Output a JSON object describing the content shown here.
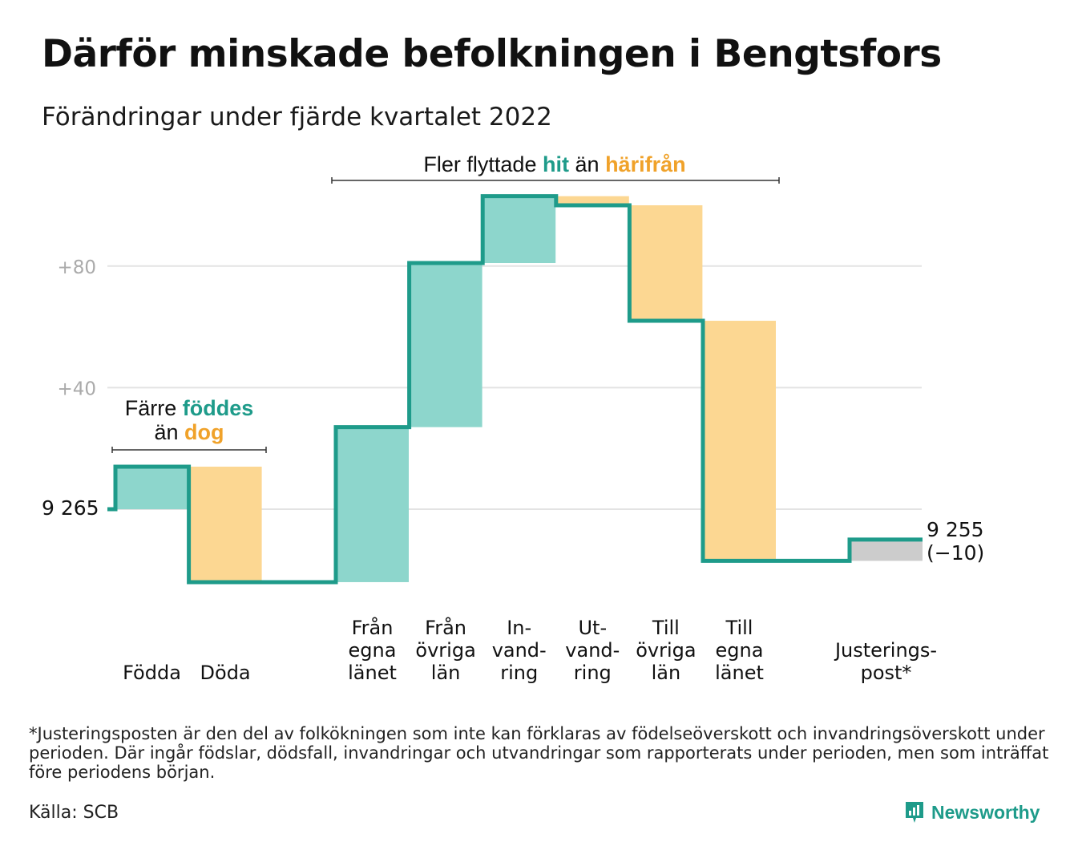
{
  "title": "Därför minskade befolkningen i Bengtsfors",
  "subtitle": "Förändringar under fjärde kvartalet 2022",
  "annotations": {
    "births_deaths": {
      "prefix": "Färre",
      "in": "föddes",
      "line2_prefix": "än",
      "out": "dog"
    },
    "migration": {
      "prefix": "Fler flyttade",
      "in": "hit",
      "middle": "än",
      "out": "härifrån"
    }
  },
  "start_label": "9 265",
  "end_label": {
    "value": "9 255",
    "change": "(−10)"
  },
  "footnote": "*Justeringsposten är den del av folkökningen som inte kan förklaras av födelseöverskott och invandringsöverskott under perioden. Där ingår födslar, dödsfall, invandringar och utvandringar som rapporterats under perioden, men som inträffat före periodens början.",
  "source": "Källa: SCB",
  "brand": "Newsworthy",
  "colors": {
    "increase": "#8dd6cc",
    "decrease": "#fcd792",
    "adjustment": "#cccccc",
    "line": "#1e9b8a",
    "highlight_in": "#1e9b8a",
    "highlight_out": "#f0a22a",
    "grid": "#e3e3e3",
    "tick": "#aaaaaa"
  },
  "chart_data": {
    "type": "waterfall",
    "start_value": 9265,
    "end_value": 9255,
    "y_ticks": [
      {
        "value": 40,
        "label": "+40"
      },
      {
        "value": 80,
        "label": "+80"
      }
    ],
    "ylim": [
      -28,
      102
    ],
    "steps": [
      {
        "key": "fodda",
        "label": [
          "Födda"
        ],
        "change": 14,
        "kind": "increase",
        "group": 0
      },
      {
        "key": "doda",
        "label": [
          "Döda"
        ],
        "change": -38,
        "kind": "decrease",
        "group": 0
      },
      {
        "key": "fran_egna",
        "label": [
          "Från",
          "egna",
          "länet"
        ],
        "change": 51,
        "kind": "increase",
        "group": 1
      },
      {
        "key": "fran_ovriga",
        "label": [
          "Från",
          "övriga",
          "län"
        ],
        "change": 54,
        "kind": "increase",
        "group": 1
      },
      {
        "key": "invandring",
        "label": [
          "In-",
          "vand-",
          "ring"
        ],
        "change": 22,
        "kind": "increase",
        "group": 1
      },
      {
        "key": "utvandring",
        "label": [
          "Ut-",
          "vand-",
          "ring"
        ],
        "change": -3,
        "kind": "decrease",
        "group": 1
      },
      {
        "key": "till_ovriga",
        "label": [
          "Till",
          "övriga",
          "län"
        ],
        "change": -38,
        "kind": "decrease",
        "group": 1
      },
      {
        "key": "till_egna",
        "label": [
          "Till",
          "egna",
          "länet"
        ],
        "change": -79,
        "kind": "decrease",
        "group": 1
      },
      {
        "key": "justering",
        "label": [
          "Justerings-",
          "post*"
        ],
        "change": 7,
        "kind": "adjustment",
        "group": 2
      }
    ]
  }
}
